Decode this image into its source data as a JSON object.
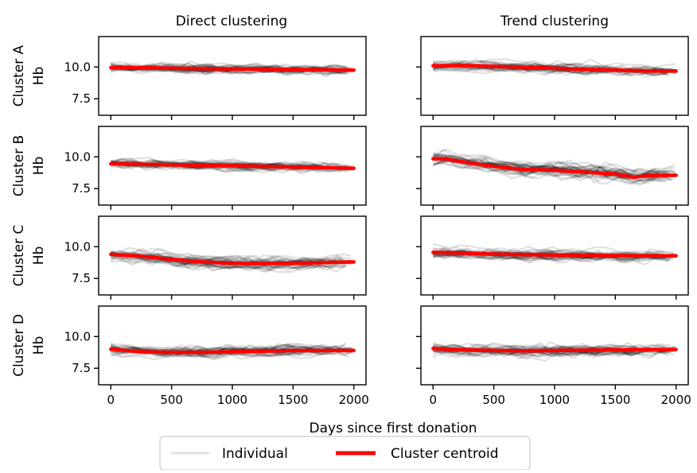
{
  "chart_data": {
    "type": "line",
    "column_titles": [
      "Direct clustering",
      "Trend clustering"
    ],
    "row_labels": [
      "Cluster A",
      "Cluster B",
      "Cluster C",
      "Cluster D"
    ],
    "ylabel": "Hb",
    "xlabel": "Days since first donation",
    "xlim": [
      -100,
      2100
    ],
    "ylim": [
      6.2,
      12.4
    ],
    "xticks": [
      0,
      500,
      1000,
      1500,
      2000
    ],
    "yticks": [
      7.5,
      10.0
    ],
    "ytick_labels": [
      "7.5",
      "10.0"
    ],
    "legend": {
      "placement": "bottom-center",
      "entries": [
        {
          "label": "Individual",
          "color": "#c8c8c8"
        },
        {
          "label": "Cluster centroid",
          "color": "#ff0000"
        }
      ]
    },
    "colors": {
      "individual": "#000000",
      "centroid": "#ff0000"
    },
    "panels": [
      {
        "row": "Cluster A",
        "column": "Direct clustering",
        "centroid_x": [
          0,
          250,
          500,
          750,
          1000,
          1250,
          1500,
          1750,
          2000
        ],
        "centroid_y": [
          9.95,
          9.95,
          9.9,
          9.88,
          9.85,
          9.83,
          9.8,
          9.78,
          9.75
        ],
        "spread": 0.35
      },
      {
        "row": "Cluster A",
        "column": "Trend clustering",
        "centroid_x": [
          0,
          250,
          500,
          750,
          1000,
          1250,
          1500,
          1750,
          2000
        ],
        "centroid_y": [
          10.1,
          10.12,
          10.05,
          9.98,
          9.9,
          9.82,
          9.75,
          9.7,
          9.68
        ],
        "spread": 0.38
      },
      {
        "row": "Cluster B",
        "column": "Direct clustering",
        "centroid_x": [
          0,
          250,
          500,
          750,
          1000,
          1250,
          1500,
          1750,
          2000
        ],
        "centroid_y": [
          9.45,
          9.42,
          9.38,
          9.33,
          9.3,
          9.25,
          9.2,
          9.15,
          9.1
        ],
        "spread": 0.38
      },
      {
        "row": "Cluster B",
        "column": "Trend clustering",
        "centroid_x": [
          0,
          100,
          250,
          500,
          750,
          1000,
          1250,
          1500,
          1650,
          1750,
          1850,
          2000
        ],
        "centroid_y": [
          9.85,
          9.85,
          9.6,
          9.25,
          9.0,
          8.95,
          8.8,
          8.65,
          8.4,
          8.5,
          8.55,
          8.55
        ],
        "spread": 0.5
      },
      {
        "row": "Cluster C",
        "column": "Direct clustering",
        "centroid_x": [
          0,
          250,
          500,
          750,
          1000,
          1250,
          1500,
          1750,
          2000
        ],
        "centroid_y": [
          9.4,
          9.25,
          9.0,
          8.8,
          8.7,
          8.68,
          8.7,
          8.75,
          8.8
        ],
        "spread": 0.45
      },
      {
        "row": "Cluster C",
        "column": "Trend clustering",
        "centroid_x": [
          0,
          250,
          500,
          750,
          1000,
          1250,
          1500,
          1750,
          2000
        ],
        "centroid_y": [
          9.55,
          9.5,
          9.42,
          9.38,
          9.35,
          9.33,
          9.3,
          9.28,
          9.28
        ],
        "spread": 0.4
      },
      {
        "row": "Cluster D",
        "column": "Direct clustering",
        "centroid_x": [
          0,
          250,
          500,
          750,
          1000,
          1250,
          1500,
          1750,
          2000
        ],
        "centroid_y": [
          9.0,
          8.8,
          8.75,
          8.75,
          8.8,
          8.85,
          8.9,
          8.9,
          8.9
        ],
        "spread": 0.45
      },
      {
        "row": "Cluster D",
        "column": "Trend clustering",
        "centroid_x": [
          0,
          250,
          500,
          750,
          1000,
          1250,
          1500,
          1750,
          2000
        ],
        "centroid_y": [
          9.05,
          8.95,
          8.9,
          8.88,
          8.9,
          8.92,
          8.95,
          8.97,
          8.98
        ],
        "spread": 0.45
      }
    ]
  }
}
